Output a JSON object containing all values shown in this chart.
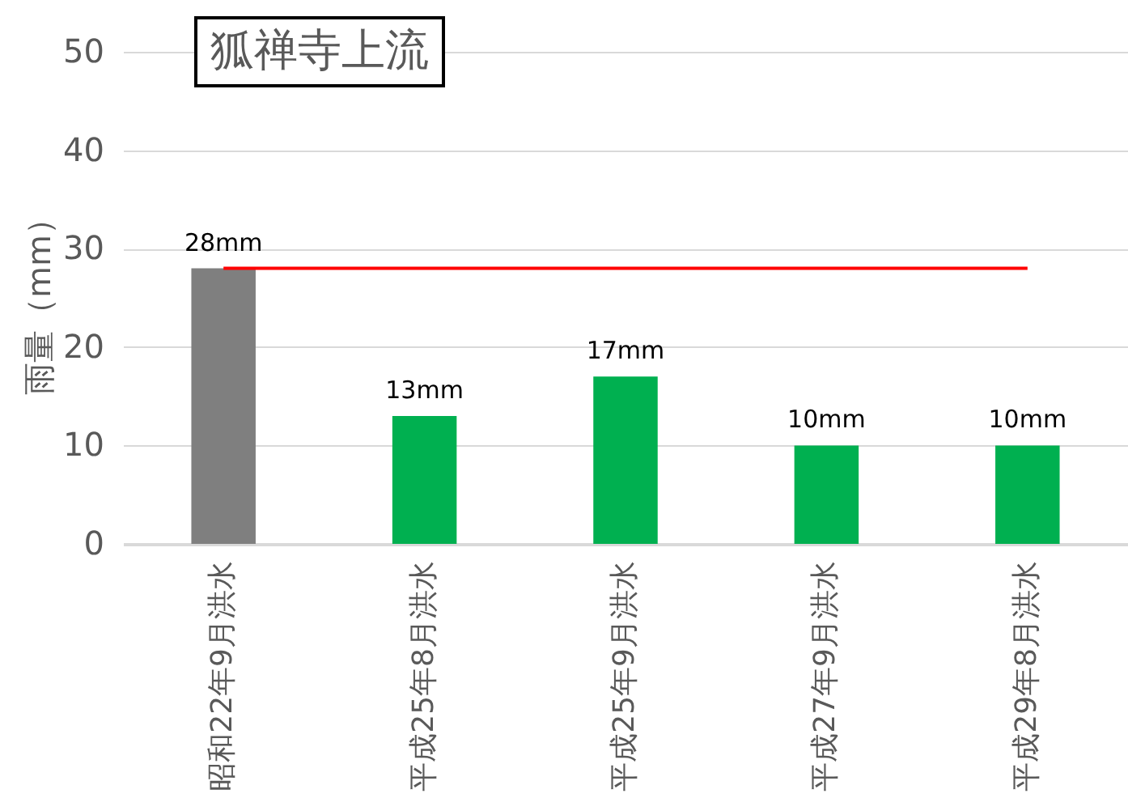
{
  "chart_data": {
    "type": "bar",
    "title": "狐禅寺上流",
    "ylabel": "雨量（mm）",
    "categories": [
      "昭和22年9月洪水",
      "平成25年8月洪水",
      "平成25年9月洪水",
      "平成27年9月洪水",
      "平成29年8月洪水"
    ],
    "values": [
      28,
      13,
      17,
      10,
      10
    ],
    "colors": [
      "#7f7f7f",
      "#00b050",
      "#00b050",
      "#00b050",
      "#00b050"
    ],
    "value_labels": [
      "28mm",
      "13mm",
      "17mm",
      "10mm",
      "10mm"
    ],
    "ylim": [
      0,
      50
    ],
    "yticks": [
      0,
      10,
      20,
      30,
      40,
      50
    ],
    "grid": "y",
    "ref_lines": [
      {
        "axis": "y",
        "value": 28,
        "color": "#ff0000"
      }
    ]
  }
}
